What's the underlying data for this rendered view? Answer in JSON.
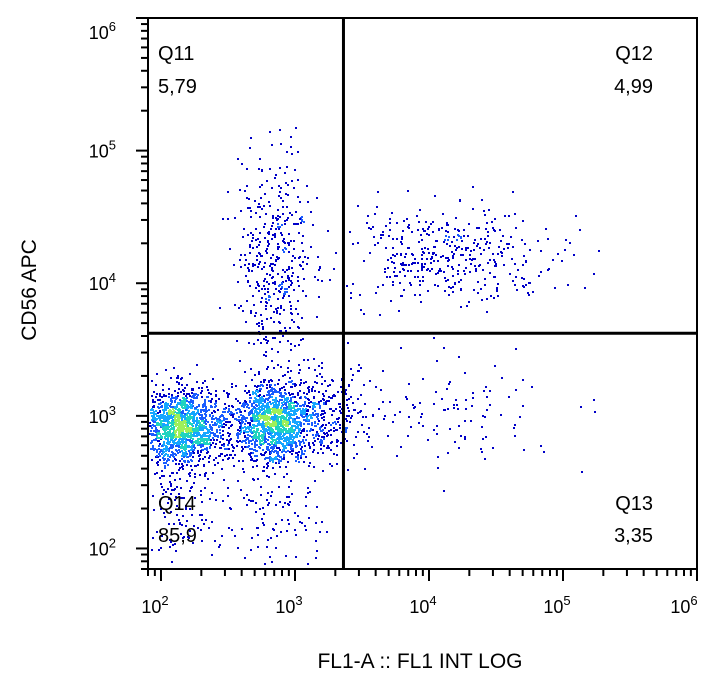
{
  "chart_data": {
    "type": "scatter",
    "title": "",
    "xlabel": "FL1-A :: FL1 INT LOG",
    "ylabel": "CD56 APC",
    "xscale": "log",
    "yscale": "log",
    "xlim": [
      80,
      1000000
    ],
    "ylim": [
      70,
      1000000
    ],
    "grid": false,
    "legend": "none",
    "x_ticks": [
      {
        "value": 100,
        "base": "10",
        "exp": "2"
      },
      {
        "value": 1000,
        "base": "10",
        "exp": "3"
      },
      {
        "value": 10000,
        "base": "10",
        "exp": "4"
      },
      {
        "value": 100000,
        "base": "10",
        "exp": "5"
      },
      {
        "value": 1000000,
        "base": "10",
        "exp": "6"
      }
    ],
    "y_ticks": [
      {
        "value": 100,
        "base": "10",
        "exp": "2"
      },
      {
        "value": 1000,
        "base": "10",
        "exp": "3"
      },
      {
        "value": 10000,
        "base": "10",
        "exp": "4"
      },
      {
        "value": 100000,
        "base": "10",
        "exp": "5"
      },
      {
        "value": 1000000,
        "base": "10",
        "exp": "6"
      }
    ],
    "gate": {
      "x": 2300,
      "y": 4200
    },
    "quadrants": [
      {
        "name": "Q11",
        "value": "5,79",
        "position": "top-left"
      },
      {
        "name": "Q12",
        "value": "4,99",
        "position": "top-right"
      },
      {
        "name": "Q13",
        "value": "3,35",
        "position": "bottom-right"
      },
      {
        "name": "Q14",
        "value": "85,9",
        "position": "bottom-left"
      }
    ],
    "populations": [
      {
        "cx": 140,
        "cy": 850,
        "sx": 0.17,
        "sy": 0.14,
        "n": 1500
      },
      {
        "cx": 650,
        "cy": 900,
        "sx": 0.15,
        "sy": 0.15,
        "n": 1300
      },
      {
        "cx": 1400,
        "cy": 1000,
        "sx": 0.17,
        "sy": 0.17,
        "n": 350
      },
      {
        "cx": 700,
        "cy": 15000,
        "sx": 0.14,
        "sy": 0.38,
        "n": 430
      },
      {
        "cx": 14000,
        "cy": 17000,
        "sx": 0.42,
        "sy": 0.17,
        "n": 420
      },
      {
        "cx": 12000,
        "cy": 1100,
        "sx": 0.45,
        "sy": 0.22,
        "n": 130
      },
      {
        "cx": 140,
        "cy": 230,
        "sx": 0.15,
        "sy": 0.25,
        "n": 160
      },
      {
        "cx": 700,
        "cy": 200,
        "sx": 0.2,
        "sy": 0.25,
        "n": 120
      }
    ],
    "density_colors": [
      "#0000c8",
      "#1a5cff",
      "#15a6ff",
      "#20d3c0",
      "#9ef05a",
      "#f0f020"
    ]
  }
}
